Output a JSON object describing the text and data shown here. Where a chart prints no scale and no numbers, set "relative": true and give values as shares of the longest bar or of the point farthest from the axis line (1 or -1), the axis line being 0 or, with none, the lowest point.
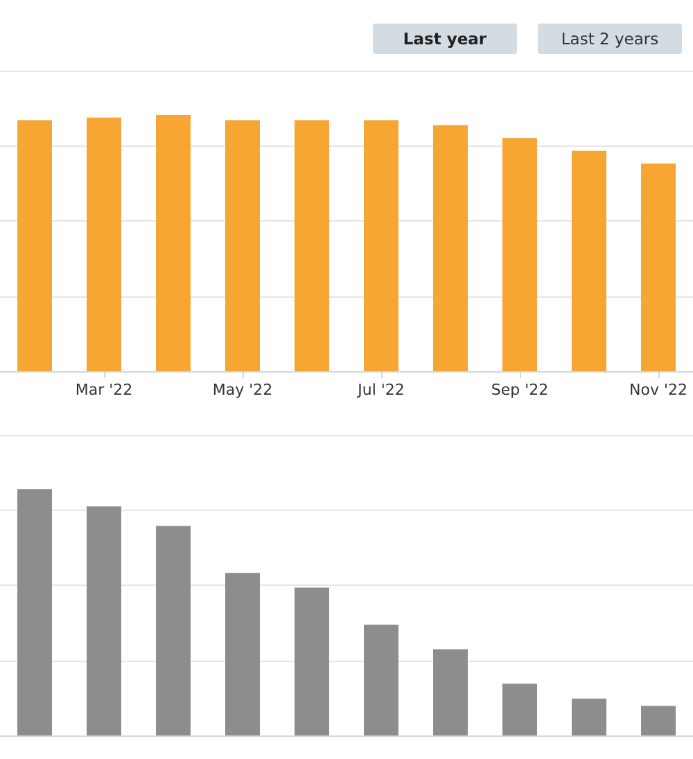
{
  "chart_data": [
    {
      "type": "bar",
      "relative": true,
      "grid": "y",
      "tick_labels": "x",
      "color": "#f7a533",
      "annotations": [
        "Last year",
        "Last 2 years"
      ],
      "categories": [
        null,
        "Mar '22",
        null,
        "May '22",
        null,
        "Jul '22",
        null,
        "Sep '22",
        null,
        "Nov '22"
      ],
      "values": [
        0.98,
        0.99,
        1,
        0.98,
        0.98,
        0.98,
        0.96,
        0.91,
        0.86,
        0.81
      ]
    },
    {
      "type": "bar",
      "relative": true,
      "grid": "y",
      "tick_labels": false,
      "color": "#8c8e8d",
      "categories": [
        null,
        null,
        null,
        null,
        null,
        null,
        null,
        null,
        null,
        null
      ],
      "values": [
        1,
        0.93,
        0.85,
        0.66,
        0.6,
        0.45,
        0.35,
        0.21,
        0.15,
        0.12
      ]
    }
  ]
}
